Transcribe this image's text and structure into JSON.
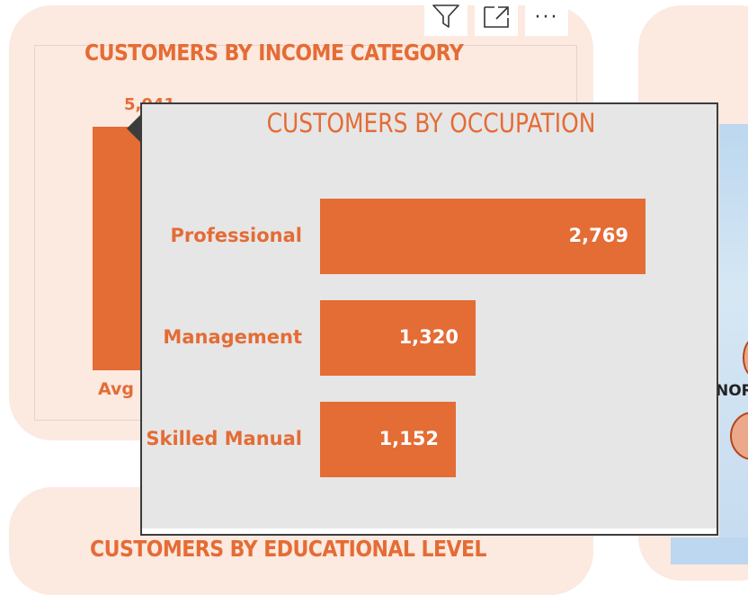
{
  "toolbar": {
    "filter_icon": "filter-icon",
    "focus_icon": "focus-mode-icon",
    "more_icon": "more-options-icon",
    "more_glyph": "···"
  },
  "income_card": {
    "title": "CUSTOMERS BY INCOME CATEGORY",
    "top_value_label": "5,041",
    "category_label": "Avg"
  },
  "education_card": {
    "title": "CUSTOMERS BY EDUCATIONAL LEVEL"
  },
  "map_card": {
    "region_label": "NOR"
  },
  "tooltip": {
    "title": "CUSTOMERS BY OCCUPATION"
  },
  "colors": {
    "accent": "#e46c35",
    "card_bg": "#fce9df",
    "tooltip_bg": "#e6e6e6"
  },
  "chart_data": {
    "type": "bar",
    "orientation": "horizontal",
    "title": "CUSTOMERS BY OCCUPATION",
    "categories": [
      "Professional",
      "Management",
      "Skilled Manual"
    ],
    "values": [
      2769,
      1320,
      1152
    ],
    "value_labels": [
      "2,769",
      "1,320",
      "1,152"
    ],
    "xlim": [
      0,
      2769
    ],
    "grid": false,
    "legend": "none"
  }
}
